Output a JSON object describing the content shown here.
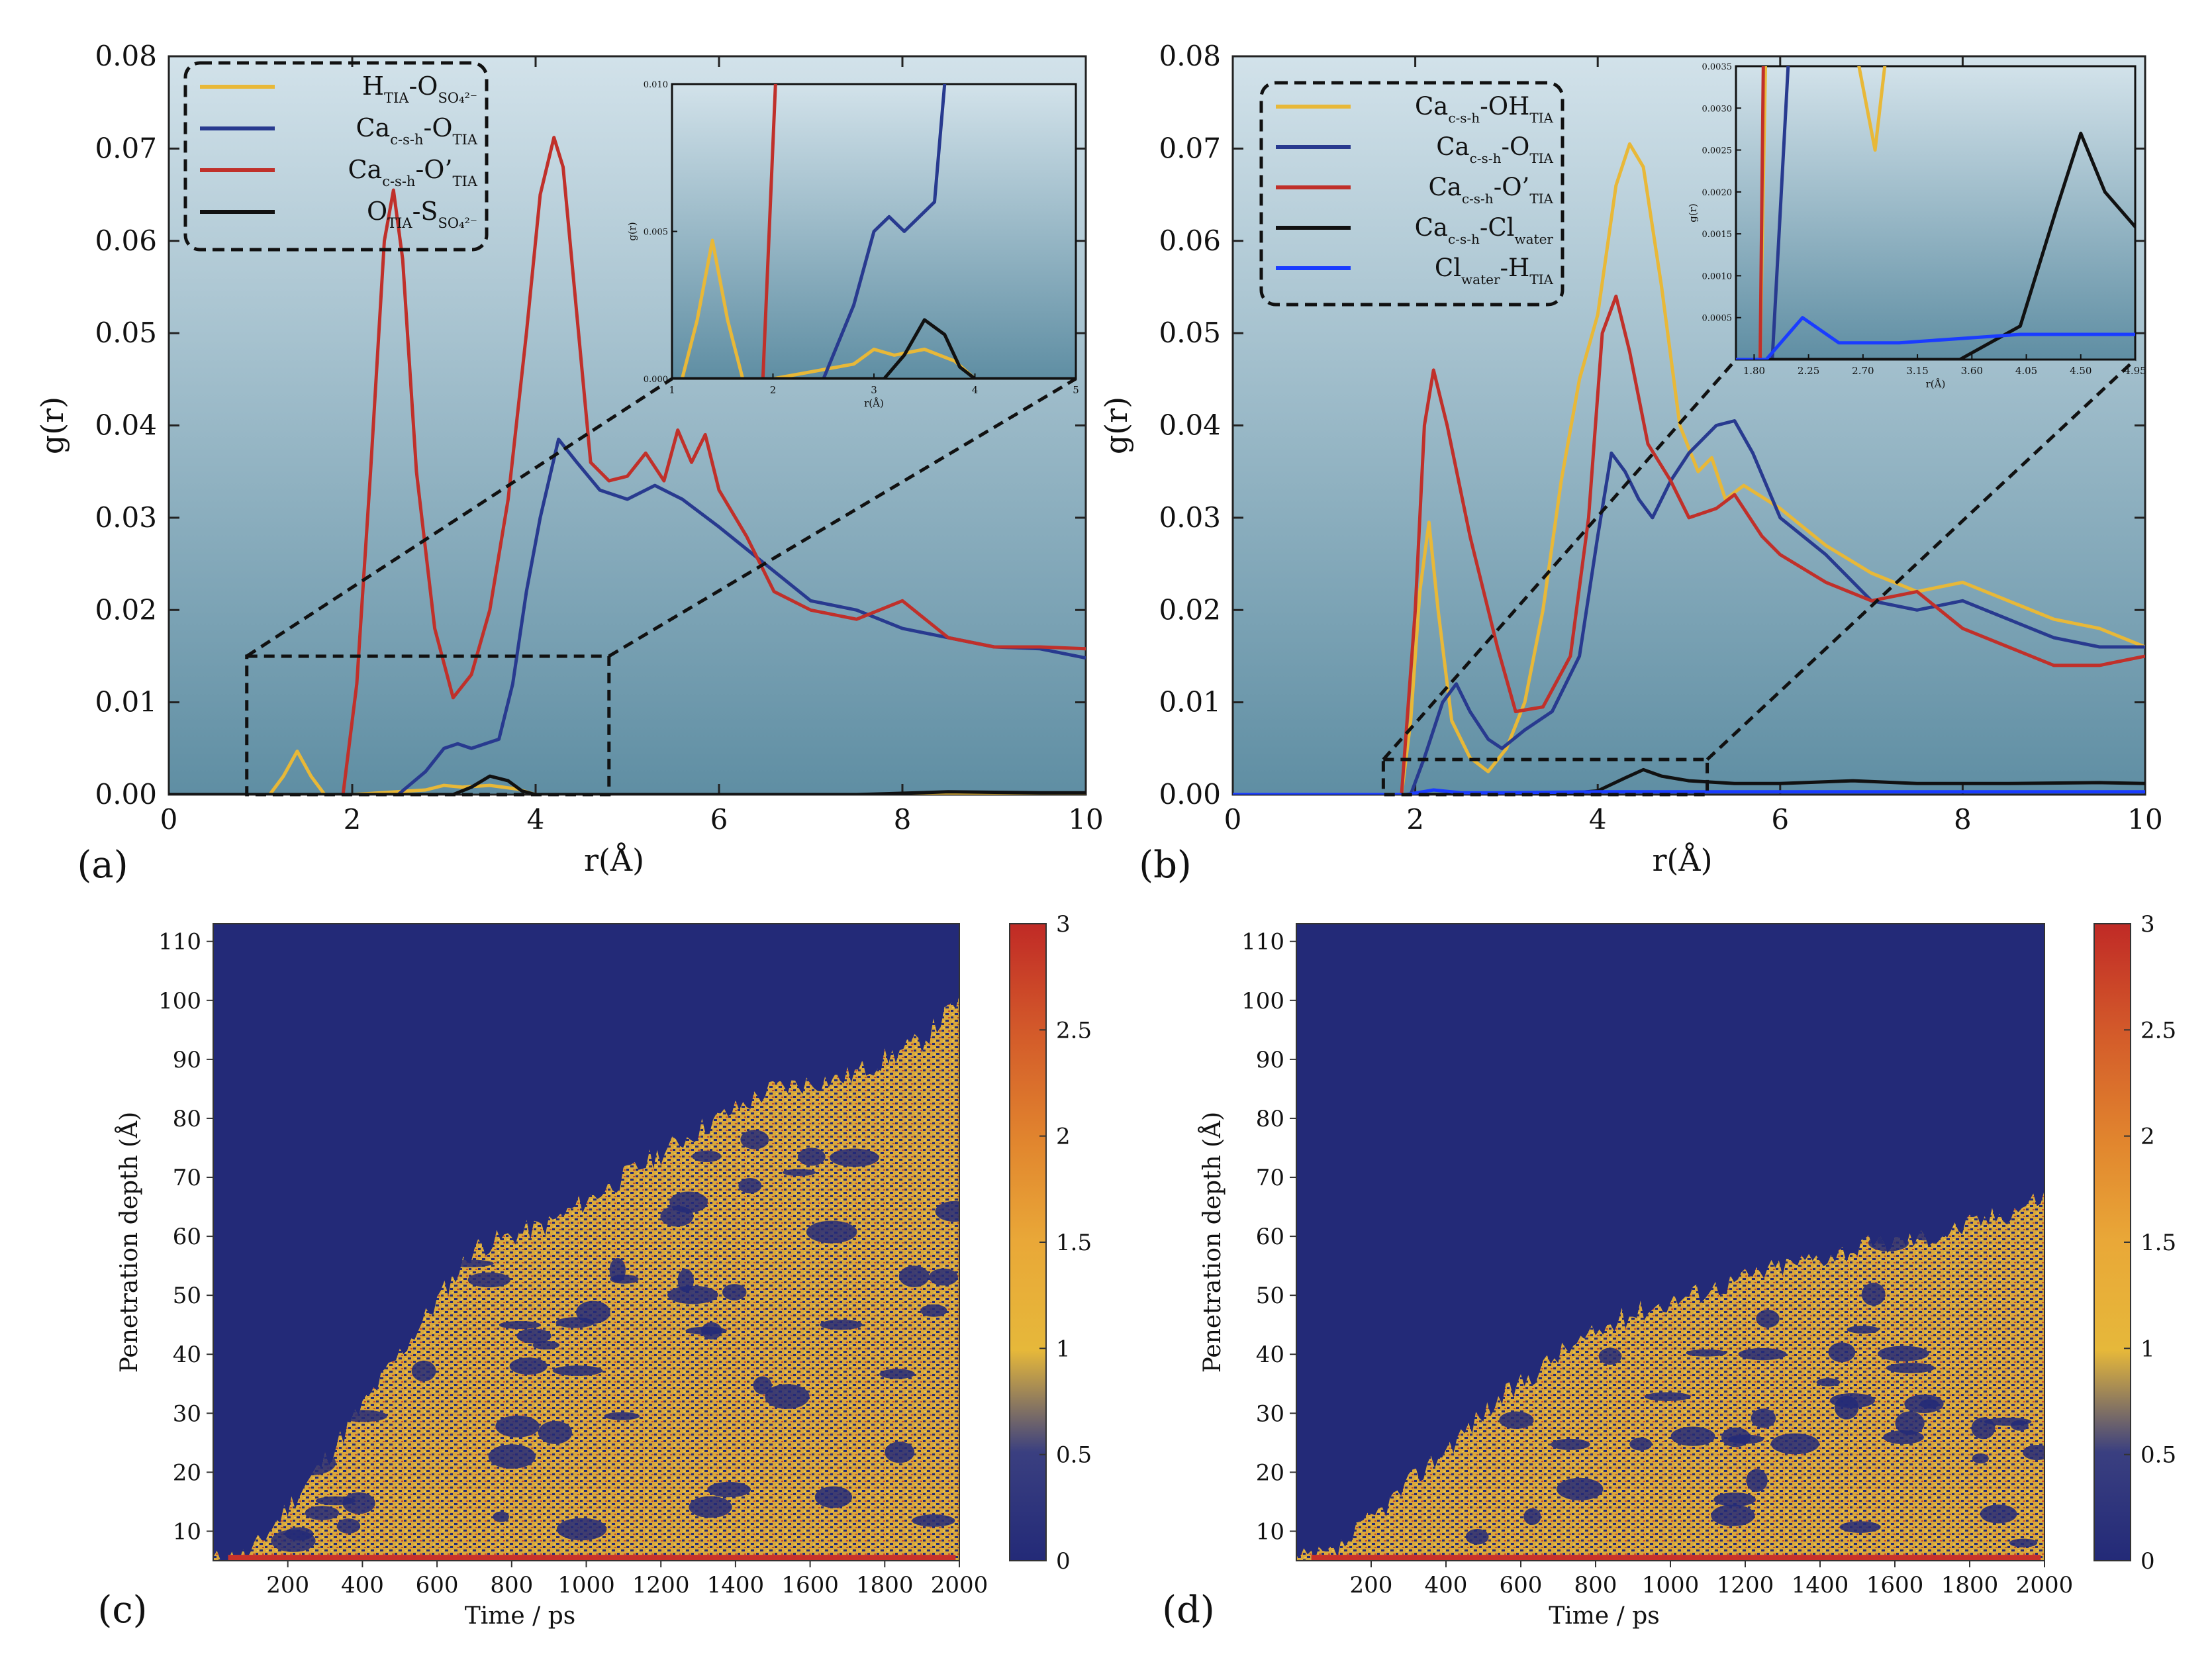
{
  "colors": {
    "yellow": "#e8b838",
    "navy": "#283a8f",
    "red": "#c0302a",
    "black": "#111111",
    "blue": "#1a3cff",
    "bg_top": "#d0e0e8",
    "bg_bottom": "#5f8ea3",
    "heat_bg": "#232a78"
  },
  "chart_data": [
    {
      "id": "a",
      "type": "line",
      "panel_label": "(a)",
      "xlabel": "r(Å)",
      "ylabel": "g(r)",
      "xlim": [
        0,
        10
      ],
      "ylim": [
        0,
        0.08
      ],
      "xticks": [
        "0",
        "2",
        "4",
        "6",
        "8",
        "10"
      ],
      "yticks": [
        "0.00",
        "0.01",
        "0.02",
        "0.03",
        "0.04",
        "0.05",
        "0.06",
        "0.07",
        "0.08"
      ],
      "legend": [
        {
          "text": "H",
          "sub": "TIA",
          "text2": "-O",
          "sub2": "SO₄²⁻",
          "color": "#e8b838"
        },
        {
          "text": "Ca",
          "sub": "c-s-h",
          "text2": "-O",
          "sub2": "TIA",
          "color": "#283a8f"
        },
        {
          "text": "Ca",
          "sub": "c-s-h",
          "text2": "-O’",
          "sub2": "TIA",
          "color": "#c0302a"
        },
        {
          "text": "O",
          "sub": "TIA",
          "text2": "-S",
          "sub2": "SO₄²⁻",
          "color": "#111111"
        }
      ],
      "series": [
        {
          "name": "H-O",
          "color": "#e8b838",
          "x": [
            0,
            1.1,
            1.25,
            1.4,
            1.55,
            1.7,
            2.0,
            2.8,
            3.0,
            3.2,
            3.5,
            3.8,
            4.0,
            6,
            8,
            10
          ],
          "y": [
            0,
            0,
            0.002,
            0.0047,
            0.002,
            0,
            0,
            0.0005,
            0.001,
            0.0008,
            0.001,
            0.0006,
            0,
            0,
            0,
            0
          ]
        },
        {
          "name": "Ca-O",
          "color": "#283a8f",
          "x": [
            0,
            2.5,
            2.8,
            3.0,
            3.15,
            3.3,
            3.45,
            3.6,
            3.75,
            3.9,
            4.05,
            4.25,
            4.45,
            4.7,
            5.0,
            5.3,
            5.6,
            6.0,
            6.5,
            7.0,
            7.5,
            8.0,
            8.5,
            9.0,
            9.5,
            10
          ],
          "y": [
            0,
            0,
            0.0025,
            0.005,
            0.0055,
            0.005,
            0.0055,
            0.006,
            0.012,
            0.022,
            0.03,
            0.0385,
            0.036,
            0.033,
            0.032,
            0.0335,
            0.032,
            0.029,
            0.025,
            0.021,
            0.02,
            0.018,
            0.017,
            0.016,
            0.0158,
            0.0148
          ]
        },
        {
          "name": "Ca-O'",
          "color": "#c0302a",
          "x": [
            0,
            1.9,
            2.05,
            2.2,
            2.35,
            2.45,
            2.55,
            2.7,
            2.9,
            3.1,
            3.3,
            3.5,
            3.7,
            3.9,
            4.05,
            4.2,
            4.3,
            4.45,
            4.6,
            4.8,
            5.0,
            5.2,
            5.4,
            5.55,
            5.7,
            5.85,
            6.0,
            6.3,
            6.6,
            7.0,
            7.5,
            8.0,
            8.5,
            9.0,
            9.5,
            10
          ],
          "y": [
            0,
            0,
            0.012,
            0.035,
            0.06,
            0.0655,
            0.058,
            0.035,
            0.018,
            0.0105,
            0.013,
            0.02,
            0.032,
            0.05,
            0.065,
            0.0712,
            0.068,
            0.052,
            0.036,
            0.034,
            0.0345,
            0.037,
            0.034,
            0.0395,
            0.036,
            0.039,
            0.033,
            0.028,
            0.022,
            0.02,
            0.019,
            0.021,
            0.017,
            0.016,
            0.016,
            0.0158
          ]
        },
        {
          "name": "O-S",
          "color": "#111111",
          "x": [
            0,
            3.1,
            3.3,
            3.5,
            3.7,
            3.85,
            4.0,
            6,
            7.5,
            8.5,
            9.5,
            10
          ],
          "y": [
            0,
            0,
            0.0008,
            0.002,
            0.0015,
            0.0004,
            0,
            0,
            0,
            0.0003,
            0.0002,
            0.0002
          ]
        }
      ],
      "inset": {
        "xlim": [
          1,
          5
        ],
        "ylim": [
          0,
          0.01
        ],
        "xticks": [
          "1",
          "2",
          "3",
          "4",
          "5"
        ],
        "yticks": [
          "0.000",
          "0.005",
          "0.010"
        ],
        "xlabel": "r(Å)",
        "ylabel": "g(r)"
      }
    },
    {
      "id": "b",
      "type": "line",
      "panel_label": "(b)",
      "xlabel": "r(Å)",
      "ylabel": "g(r)",
      "xlim": [
        0,
        10
      ],
      "ylim": [
        0,
        0.08
      ],
      "xticks": [
        "0",
        "2",
        "4",
        "6",
        "8",
        "10"
      ],
      "yticks": [
        "0.00",
        "0.01",
        "0.02",
        "0.03",
        "0.04",
        "0.05",
        "0.06",
        "0.07",
        "0.08"
      ],
      "legend": [
        {
          "text": "Ca",
          "sub": "c-s-h",
          "text2": "-OH",
          "sub2": "TIA",
          "color": "#e8b838"
        },
        {
          "text": "Ca",
          "sub": "c-s-h",
          "text2": "-O",
          "sub2": "TIA",
          "color": "#283a8f"
        },
        {
          "text": "Ca",
          "sub": "c-s-h",
          "text2": "-O’",
          "sub2": "TIA",
          "color": "#c0302a"
        },
        {
          "text": "Ca",
          "sub": "c-s-h",
          "text2": "-Cl",
          "sub2": "water",
          "color": "#111111"
        },
        {
          "text": "Cl",
          "sub": "water",
          "text2": "-H",
          "sub2": "TIA",
          "color": "#1a3cff"
        }
      ],
      "series": [
        {
          "name": "Ca-OH",
          "color": "#e8b838",
          "x": [
            0,
            1.85,
            1.95,
            2.05,
            2.15,
            2.25,
            2.4,
            2.6,
            2.8,
            3.0,
            3.2,
            3.4,
            3.6,
            3.8,
            4.0,
            4.2,
            4.35,
            4.5,
            4.7,
            4.9,
            5.1,
            5.25,
            5.4,
            5.6,
            6.0,
            6.5,
            7.0,
            7.5,
            8.0,
            8.5,
            9.0,
            9.5,
            10
          ],
          "y": [
            0,
            0,
            0.008,
            0.022,
            0.0295,
            0.02,
            0.008,
            0.004,
            0.0025,
            0.005,
            0.01,
            0.02,
            0.034,
            0.045,
            0.052,
            0.066,
            0.0705,
            0.068,
            0.055,
            0.04,
            0.035,
            0.0365,
            0.032,
            0.0335,
            0.031,
            0.027,
            0.024,
            0.022,
            0.023,
            0.021,
            0.019,
            0.018,
            0.016
          ]
        },
        {
          "name": "Ca-O",
          "color": "#283a8f",
          "x": [
            0,
            1.95,
            2.1,
            2.3,
            2.45,
            2.6,
            2.8,
            2.95,
            3.2,
            3.5,
            3.8,
            4.0,
            4.15,
            4.3,
            4.45,
            4.6,
            4.8,
            5.0,
            5.3,
            5.5,
            5.7,
            6.0,
            6.5,
            7.0,
            7.5,
            8.0,
            8.5,
            9.0,
            9.5,
            10
          ],
          "y": [
            0,
            0,
            0.004,
            0.01,
            0.012,
            0.009,
            0.006,
            0.005,
            0.007,
            0.009,
            0.015,
            0.028,
            0.037,
            0.035,
            0.032,
            0.03,
            0.034,
            0.037,
            0.04,
            0.0405,
            0.037,
            0.03,
            0.026,
            0.021,
            0.02,
            0.021,
            0.019,
            0.017,
            0.016,
            0.016
          ]
        },
        {
          "name": "Ca-O'",
          "color": "#c0302a",
          "x": [
            0,
            1.85,
            2.0,
            2.1,
            2.2,
            2.35,
            2.6,
            2.9,
            3.1,
            3.4,
            3.7,
            3.9,
            4.05,
            4.2,
            4.35,
            4.55,
            4.8,
            5.0,
            5.3,
            5.5,
            5.8,
            6.0,
            6.5,
            7.0,
            7.5,
            8.0,
            8.5,
            9.0,
            9.5,
            10
          ],
          "y": [
            0,
            0,
            0.02,
            0.04,
            0.046,
            0.04,
            0.028,
            0.016,
            0.009,
            0.0095,
            0.015,
            0.03,
            0.05,
            0.054,
            0.048,
            0.038,
            0.034,
            0.03,
            0.031,
            0.0325,
            0.028,
            0.026,
            0.023,
            0.021,
            0.022,
            0.018,
            0.016,
            0.014,
            0.014,
            0.015
          ]
        },
        {
          "name": "Ca-Cl",
          "color": "#111111",
          "x": [
            0,
            3.5,
            4.0,
            4.3,
            4.5,
            4.7,
            5.0,
            5.5,
            6.0,
            6.8,
            7.5,
            8.5,
            9.5,
            10
          ],
          "y": [
            0,
            0,
            0.0004,
            0.0018,
            0.0027,
            0.002,
            0.0015,
            0.0012,
            0.0012,
            0.0015,
            0.0012,
            0.0012,
            0.0013,
            0.0012
          ]
        },
        {
          "name": "Cl-H",
          "color": "#1a3cff",
          "x": [
            0,
            1.9,
            2.2,
            2.5,
            3.0,
            4.0,
            5.0,
            7.0,
            10
          ],
          "y": [
            0,
            0,
            0.0005,
            0.0002,
            0.0002,
            0.0003,
            0.0003,
            0.0003,
            0.0003
          ]
        }
      ],
      "inset": {
        "xlim": [
          1.65,
          4.95
        ],
        "ylim": [
          0,
          0.0035
        ],
        "xticks": [
          "1.80",
          "2.25",
          "2.70",
          "3.15",
          "3.60",
          "4.05",
          "4.50",
          "4.95"
        ],
        "yticks": [
          "0.0005",
          "0.0010",
          "0.0015",
          "0.0020",
          "0.0025",
          "0.0030",
          "0.0035"
        ],
        "xlabel": "r(Å)",
        "ylabel": "g(r)"
      }
    },
    {
      "id": "c",
      "type": "heatmap",
      "panel_label": "(c)",
      "xlabel": "Time / ps",
      "ylabel": "Penetration depth (Å)",
      "xlim": [
        0,
        2000
      ],
      "ylim": [
        5,
        113
      ],
      "xticks": [
        "200",
        "400",
        "600",
        "800",
        "1000",
        "1200",
        "1400",
        "1600",
        "1800",
        "2000"
      ],
      "yticks": [
        "10",
        "20",
        "30",
        "40",
        "50",
        "60",
        "70",
        "80",
        "90",
        "100",
        "110"
      ],
      "colorbar": {
        "min": 0,
        "max": 3,
        "ticks": [
          "0",
          "0.5",
          "1",
          "1.5",
          "2",
          "2.5",
          "3"
        ]
      },
      "front": {
        "t": [
          0,
          100,
          300,
          500,
          700,
          900,
          1100,
          1300,
          1500,
          1700,
          1900,
          2000
        ],
        "depth": [
          5,
          6,
          22,
          40,
          58,
          62,
          70,
          78,
          85,
          87,
          93,
          100
        ]
      }
    },
    {
      "id": "d",
      "type": "heatmap",
      "panel_label": "(d)",
      "xlabel": "Time / ps",
      "ylabel": "Penetration depth (Å)",
      "xlim": [
        0,
        2000
      ],
      "ylim": [
        5,
        113
      ],
      "xticks": [
        "200",
        "400",
        "600",
        "800",
        "1000",
        "1200",
        "1400",
        "1600",
        "1800",
        "2000"
      ],
      "yticks": [
        "10",
        "20",
        "30",
        "40",
        "50",
        "60",
        "70",
        "80",
        "90",
        "100",
        "110"
      ],
      "colorbar": {
        "min": 0,
        "max": 3,
        "ticks": [
          "0",
          "0.5",
          "1",
          "1.5",
          "2",
          "2.5",
          "3"
        ]
      },
      "front": {
        "t": [
          0,
          100,
          300,
          500,
          700,
          900,
          1100,
          1300,
          1500,
          1700,
          1900,
          2000
        ],
        "depth": [
          5,
          6,
          18,
          30,
          40,
          47,
          51,
          55,
          58,
          60,
          64,
          67
        ]
      }
    }
  ]
}
